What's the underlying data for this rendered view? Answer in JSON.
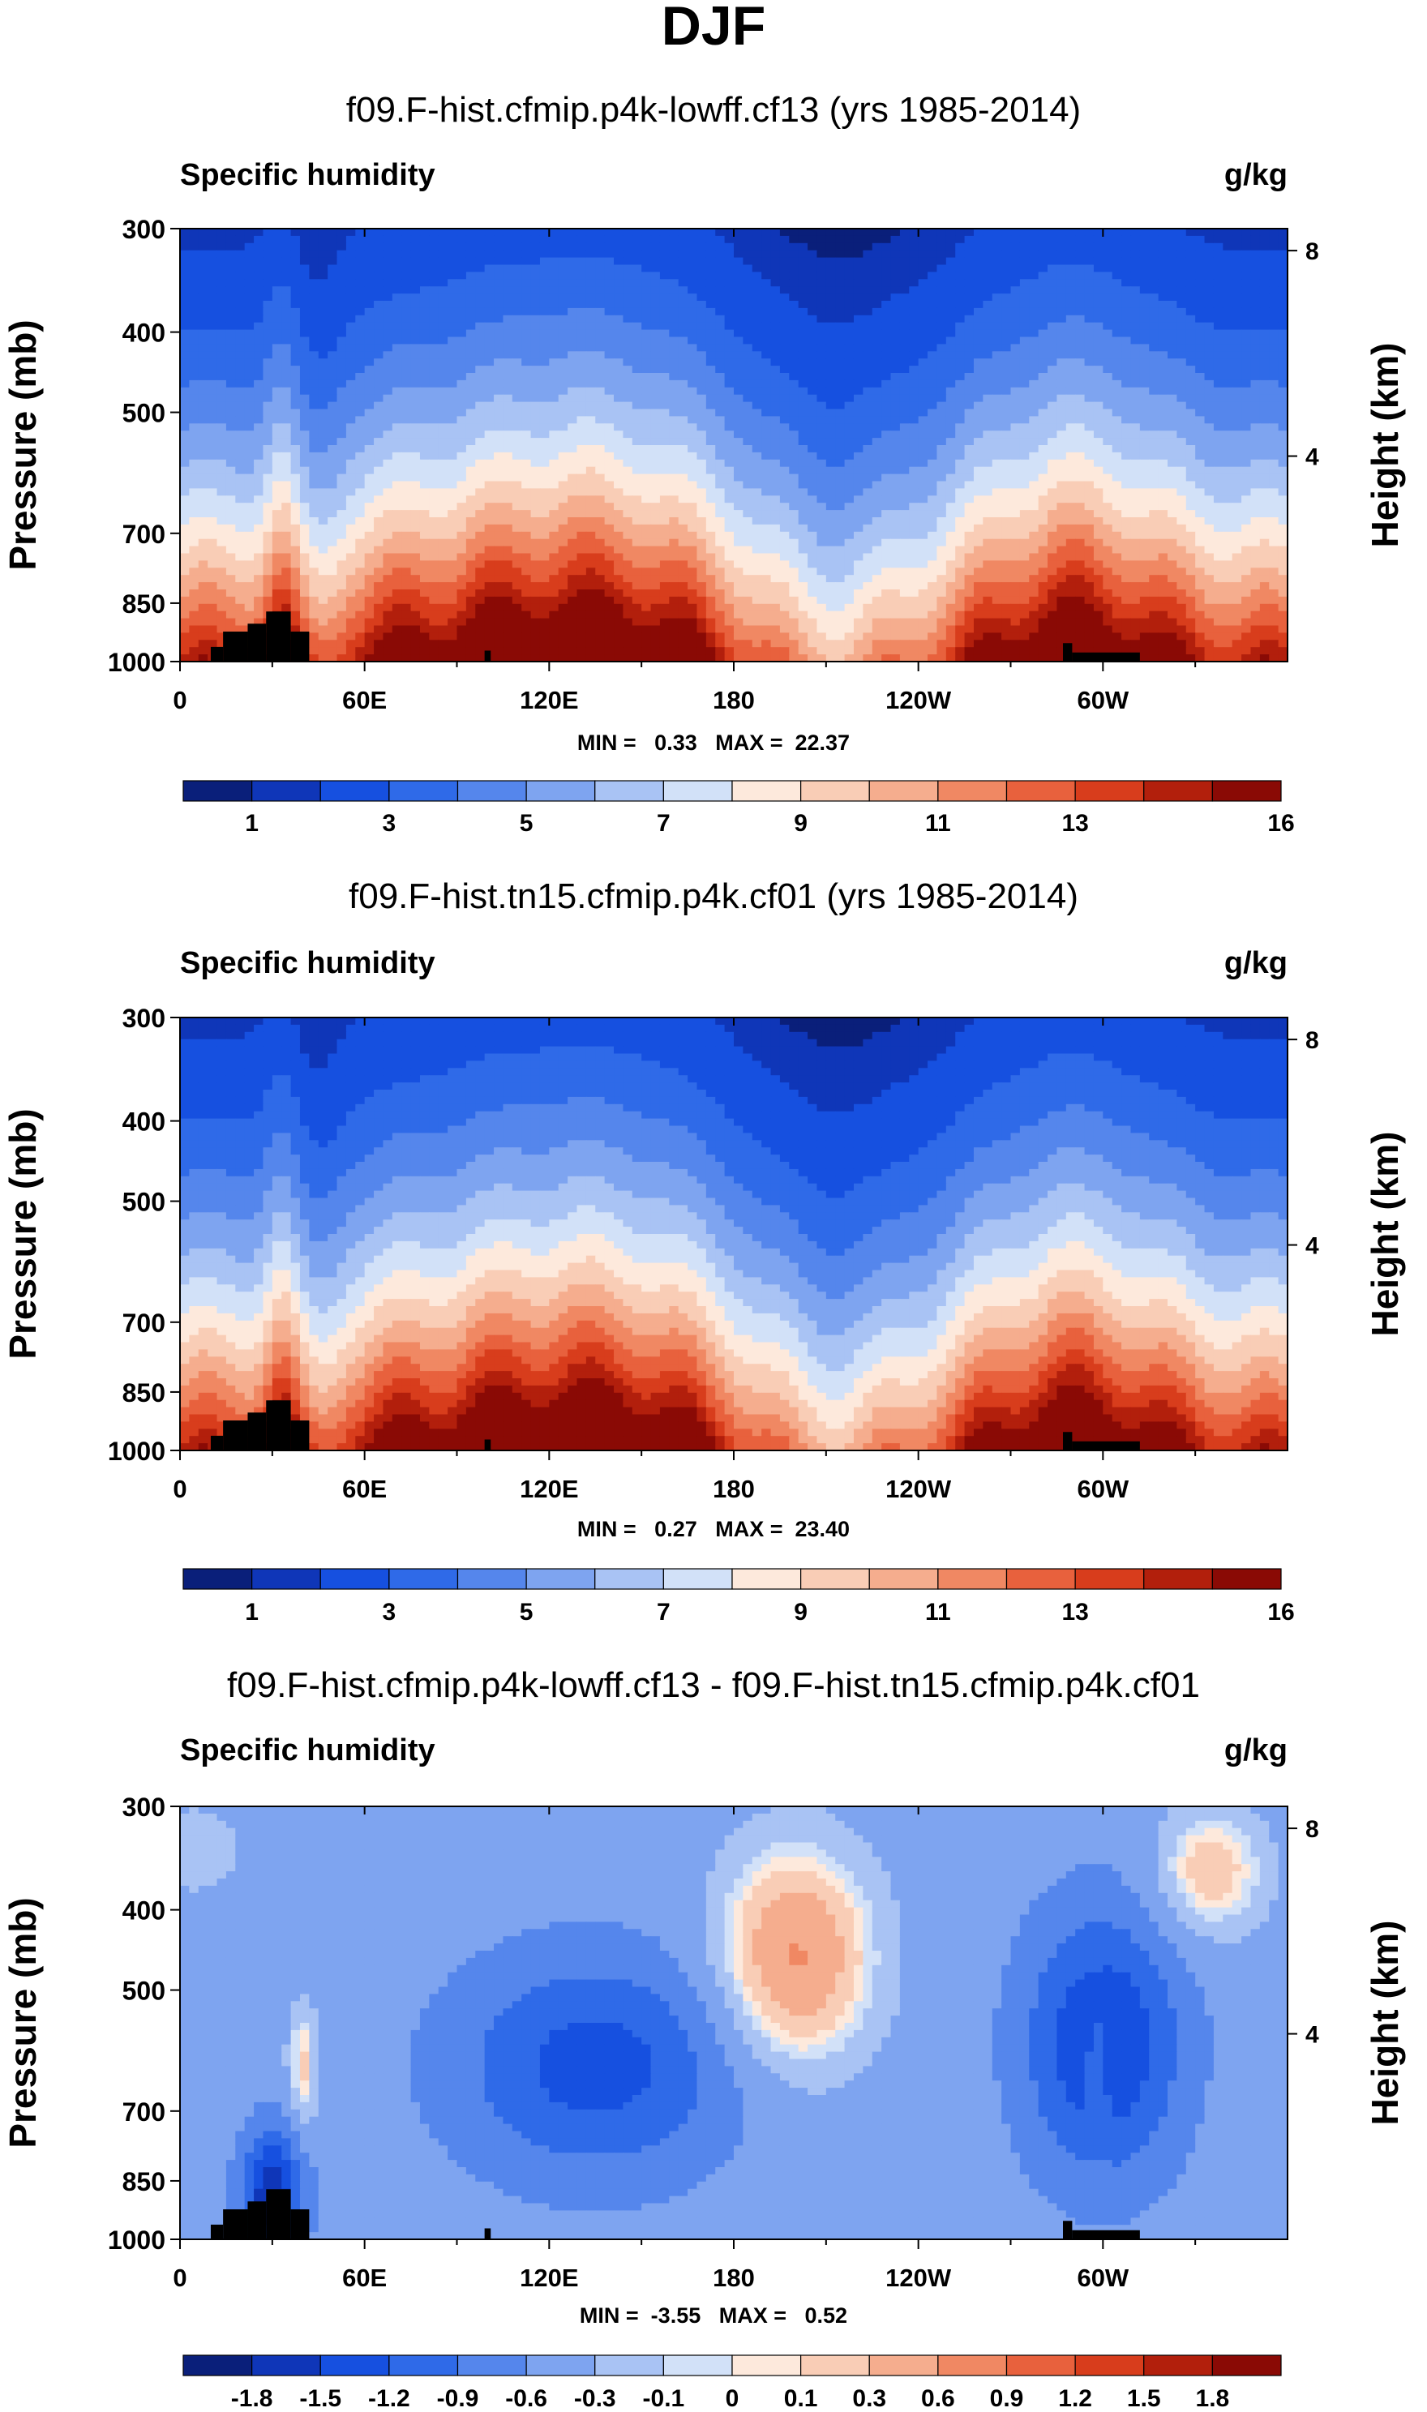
{
  "page_title": "DJF",
  "chart_data": [
    {
      "type": "heatmap",
      "title": "f09.F-hist.cfmip.p4k-lowff.cf13 (yrs 1985-2014)",
      "variable": "Specific humidity",
      "units": "g/kg",
      "ylabel": "Pressure (mb)",
      "ylabel_right": "Height (km)",
      "x_ticks": [
        "0",
        "60E",
        "120E",
        "180",
        "120W",
        "60W"
      ],
      "x_tick_values": [
        0,
        60,
        120,
        180,
        240,
        300
      ],
      "xlim": [
        0,
        360
      ],
      "y_ticks": [
        "300",
        "400",
        "500",
        "700",
        "850",
        "1000"
      ],
      "y_tick_values": [
        300,
        400,
        500,
        700,
        850,
        1000
      ],
      "ylim": [
        300,
        1000
      ],
      "height_ticks": [
        "8",
        "4"
      ],
      "height_tick_values": [
        8,
        4
      ],
      "stats_label": "MIN =   0.33   MAX =  22.37",
      "min": 0.33,
      "max": 22.37,
      "colorbar_labels": [
        "1",
        "3",
        "5",
        "7",
        "9",
        "11",
        "13",
        "16"
      ],
      "colorbar_colors": [
        "#0a1f7a",
        "#0f36b8",
        "#1650e0",
        "#2f6ae8",
        "#5586ec",
        "#7ea4f0",
        "#a9c3f4",
        "#d2e1f8",
        "#fde9dc",
        "#f9cdb6",
        "#f5ad8e",
        "#f08863",
        "#e8613d",
        "#d83d1c",
        "#b21f0c",
        "#8a0a05"
      ],
      "shape": "mean"
    },
    {
      "type": "heatmap",
      "title": "f09.F-hist.tn15.cfmip.p4k.cf01 (yrs 1985-2014)",
      "variable": "Specific humidity",
      "units": "g/kg",
      "ylabel": "Pressure (mb)",
      "ylabel_right": "Height (km)",
      "x_ticks": [
        "0",
        "60E",
        "120E",
        "180",
        "120W",
        "60W"
      ],
      "x_tick_values": [
        0,
        60,
        120,
        180,
        240,
        300
      ],
      "xlim": [
        0,
        360
      ],
      "y_ticks": [
        "300",
        "400",
        "500",
        "700",
        "850",
        "1000"
      ],
      "y_tick_values": [
        300,
        400,
        500,
        700,
        850,
        1000
      ],
      "ylim": [
        300,
        1000
      ],
      "height_ticks": [
        "8",
        "4"
      ],
      "height_tick_values": [
        8,
        4
      ],
      "stats_label": "MIN =   0.27   MAX =  23.40",
      "min": 0.27,
      "max": 23.4,
      "colorbar_labels": [
        "1",
        "3",
        "5",
        "7",
        "9",
        "11",
        "13",
        "16"
      ],
      "colorbar_colors": [
        "#0a1f7a",
        "#0f36b8",
        "#1650e0",
        "#2f6ae8",
        "#5586ec",
        "#7ea4f0",
        "#a9c3f4",
        "#d2e1f8",
        "#fde9dc",
        "#f9cdb6",
        "#f5ad8e",
        "#f08863",
        "#e8613d",
        "#d83d1c",
        "#b21f0c",
        "#8a0a05"
      ],
      "shape": "mean"
    },
    {
      "type": "heatmap",
      "title": "f09.F-hist.cfmip.p4k-lowff.cf13 - f09.F-hist.tn15.cfmip.p4k.cf01",
      "variable": "Specific humidity",
      "units": "g/kg",
      "ylabel": "Pressure (mb)",
      "ylabel_right": "Height (km)",
      "x_ticks": [
        "0",
        "60E",
        "120E",
        "180",
        "120W",
        "60W"
      ],
      "x_tick_values": [
        0,
        60,
        120,
        180,
        240,
        300
      ],
      "xlim": [
        0,
        360
      ],
      "y_ticks": [
        "300",
        "400",
        "500",
        "700",
        "850",
        "1000"
      ],
      "y_tick_values": [
        300,
        400,
        500,
        700,
        850,
        1000
      ],
      "ylim": [
        300,
        1000
      ],
      "height_ticks": [
        "8",
        "4"
      ],
      "height_tick_values": [
        8,
        4
      ],
      "stats_label": "MIN =  -3.55   MAX =   0.52",
      "min": -3.55,
      "max": 0.52,
      "colorbar_labels": [
        "-1.8",
        "-1.5",
        "-1.2",
        "-0.9",
        "-0.6",
        "-0.3",
        "-0.1",
        "0",
        "0.1",
        "0.3",
        "0.6",
        "0.9",
        "1.2",
        "1.5",
        "1.8"
      ],
      "colorbar_colors": [
        "#0a1f7a",
        "#0f36b8",
        "#1650e0",
        "#2f6ae8",
        "#5586ec",
        "#7ea4f0",
        "#a9c3f4",
        "#d2e1f8",
        "#fde9dc",
        "#f9cdb6",
        "#f5ad8e",
        "#f08863",
        "#e8613d",
        "#d83d1c",
        "#b21f0c",
        "#8a0a05"
      ],
      "shape": "diff"
    }
  ]
}
